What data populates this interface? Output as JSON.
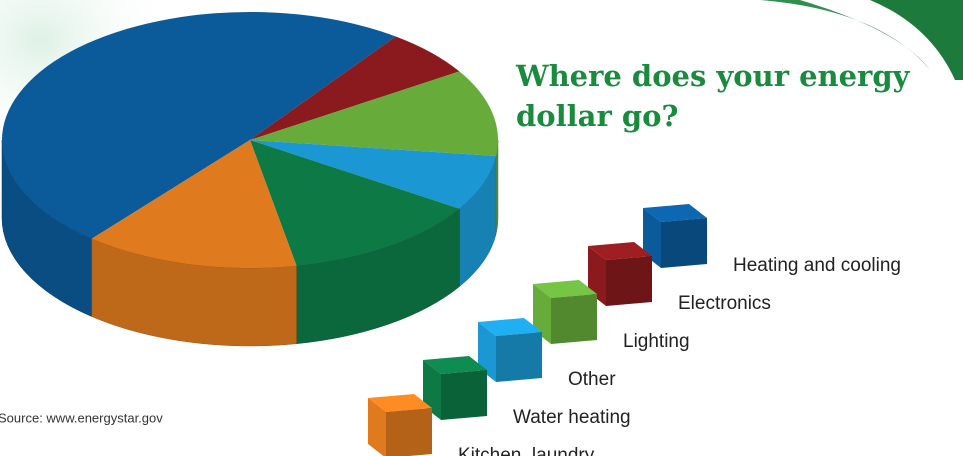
{
  "chart_data": {
    "type": "pie",
    "title": "Where does your energy dollar go?",
    "source": "Source: www.energystar.gov",
    "categories": [
      "Heating and cooling",
      "Electronics",
      "Lighting",
      "Other",
      "Water heating",
      "Kitchen, laundry"
    ],
    "values": [
      49,
      6,
      11,
      7,
      13,
      14
    ],
    "colors": [
      "#0b5a9a",
      "#8a1a1d",
      "#67ab3b",
      "#1b98d3",
      "#0d7a46",
      "#e07a1e"
    ]
  }
}
